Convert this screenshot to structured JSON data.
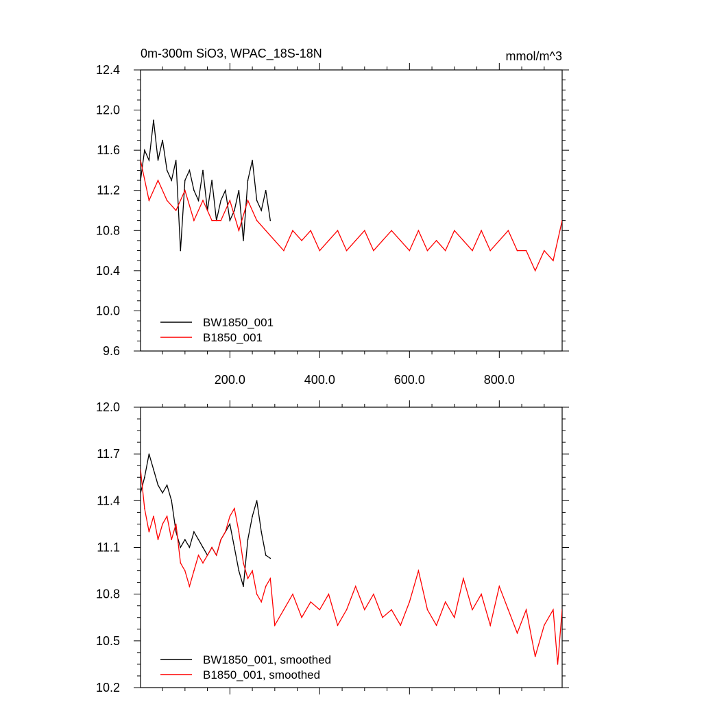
{
  "chart_data": [
    {
      "type": "line",
      "title": "0m-300m SiO3, WPAC_18S-18N",
      "units": "mmol/m^3",
      "xlim": [
        1,
        940
      ],
      "ylim": [
        9.6,
        12.4
      ],
      "x_ticks": [
        200,
        400,
        600,
        800
      ],
      "x_tick_labels": [
        "200.0",
        "400.0",
        "600.0",
        "800.0"
      ],
      "y_ticks": [
        9.6,
        10.0,
        10.4,
        10.8,
        11.2,
        11.6,
        12.0,
        12.4
      ],
      "y_tick_labels": [
        "9.6",
        "10.0",
        "10.4",
        "10.8",
        "11.2",
        "11.6",
        "12.0",
        "12.4"
      ],
      "legend_position": "bottom-left",
      "series": [
        {
          "name": "BW1850_001",
          "color": "#000000",
          "x": [
            1,
            10,
            20,
            30,
            40,
            50,
            60,
            70,
            80,
            90,
            100,
            110,
            120,
            130,
            140,
            150,
            160,
            170,
            180,
            190,
            200,
            210,
            220,
            230,
            240,
            250,
            260,
            270,
            280,
            290
          ],
          "y": [
            11.3,
            11.6,
            11.5,
            11.9,
            11.5,
            11.7,
            11.4,
            11.3,
            11.5,
            10.6,
            11.3,
            11.4,
            11.2,
            11.1,
            11.4,
            11.0,
            11.3,
            10.9,
            11.1,
            11.2,
            10.9,
            11.0,
            11.2,
            10.7,
            11.3,
            11.5,
            11.1,
            11.0,
            11.2,
            10.9
          ]
        },
        {
          "name": "B1850_001",
          "color": "#ff0000",
          "x": [
            1,
            20,
            40,
            60,
            80,
            100,
            120,
            140,
            160,
            180,
            200,
            220,
            240,
            260,
            280,
            300,
            320,
            340,
            360,
            380,
            400,
            420,
            440,
            460,
            480,
            500,
            520,
            540,
            560,
            580,
            600,
            620,
            640,
            660,
            680,
            700,
            720,
            740,
            760,
            780,
            800,
            820,
            840,
            860,
            880,
            900,
            920,
            940
          ],
          "y": [
            11.5,
            11.1,
            11.3,
            11.1,
            11.0,
            11.2,
            10.9,
            11.1,
            10.9,
            10.9,
            11.1,
            10.8,
            11.1,
            10.9,
            10.8,
            10.7,
            10.6,
            10.8,
            10.7,
            10.8,
            10.6,
            10.7,
            10.8,
            10.6,
            10.7,
            10.8,
            10.6,
            10.7,
            10.8,
            10.7,
            10.6,
            10.8,
            10.6,
            10.7,
            10.6,
            10.8,
            10.7,
            10.6,
            10.8,
            10.6,
            10.7,
            10.8,
            10.6,
            10.6,
            10.4,
            10.6,
            10.5,
            10.9
          ]
        }
      ]
    },
    {
      "type": "line",
      "xlim": [
        1,
        940
      ],
      "ylim": [
        10.2,
        12.0
      ],
      "y_ticks": [
        10.2,
        10.5,
        10.8,
        11.1,
        11.4,
        11.7,
        12.0
      ],
      "y_tick_labels": [
        "10.2",
        "10.5",
        "10.8",
        "11.1",
        "11.4",
        "11.7",
        "12.0"
      ],
      "legend_position": "bottom-left",
      "series": [
        {
          "name": "BW1850_001, smoothed",
          "color": "#000000",
          "x": [
            1,
            10,
            20,
            30,
            40,
            50,
            60,
            70,
            80,
            90,
            100,
            110,
            120,
            130,
            140,
            150,
            160,
            170,
            180,
            190,
            200,
            210,
            220,
            230,
            240,
            250,
            260,
            270,
            280,
            290
          ],
          "y": [
            11.45,
            11.55,
            11.7,
            11.6,
            11.5,
            11.45,
            11.5,
            11.4,
            11.2,
            11.1,
            11.15,
            11.1,
            11.2,
            11.15,
            11.1,
            11.05,
            11.1,
            11.05,
            11.15,
            11.2,
            11.25,
            11.1,
            10.95,
            10.85,
            11.15,
            11.3,
            11.4,
            11.2,
            11.05,
            11.03
          ]
        },
        {
          "name": "B1850_001, smoothed",
          "color": "#ff0000",
          "x": [
            1,
            10,
            20,
            30,
            40,
            50,
            60,
            70,
            80,
            90,
            100,
            110,
            120,
            130,
            140,
            150,
            160,
            170,
            180,
            190,
            200,
            210,
            220,
            230,
            240,
            250,
            260,
            270,
            280,
            290,
            300,
            320,
            340,
            360,
            380,
            400,
            420,
            440,
            460,
            480,
            500,
            520,
            540,
            560,
            580,
            600,
            620,
            640,
            660,
            680,
            700,
            720,
            740,
            760,
            780,
            800,
            820,
            840,
            860,
            880,
            900,
            920,
            930,
            940
          ],
          "y": [
            11.6,
            11.35,
            11.2,
            11.3,
            11.15,
            11.25,
            11.3,
            11.15,
            11.25,
            11.0,
            10.95,
            10.85,
            10.95,
            11.05,
            11.0,
            11.05,
            11.1,
            11.05,
            11.15,
            11.2,
            11.3,
            11.35,
            11.2,
            11.0,
            10.9,
            10.95,
            10.8,
            10.75,
            10.85,
            10.9,
            10.6,
            10.7,
            10.8,
            10.65,
            10.75,
            10.7,
            10.8,
            10.6,
            10.7,
            10.85,
            10.7,
            10.8,
            10.65,
            10.7,
            10.6,
            10.75,
            10.95,
            10.7,
            10.6,
            10.75,
            10.65,
            10.9,
            10.7,
            10.8,
            10.6,
            10.85,
            10.7,
            10.55,
            10.7,
            10.4,
            10.6,
            10.7,
            10.35,
            10.7
          ]
        }
      ]
    }
  ]
}
